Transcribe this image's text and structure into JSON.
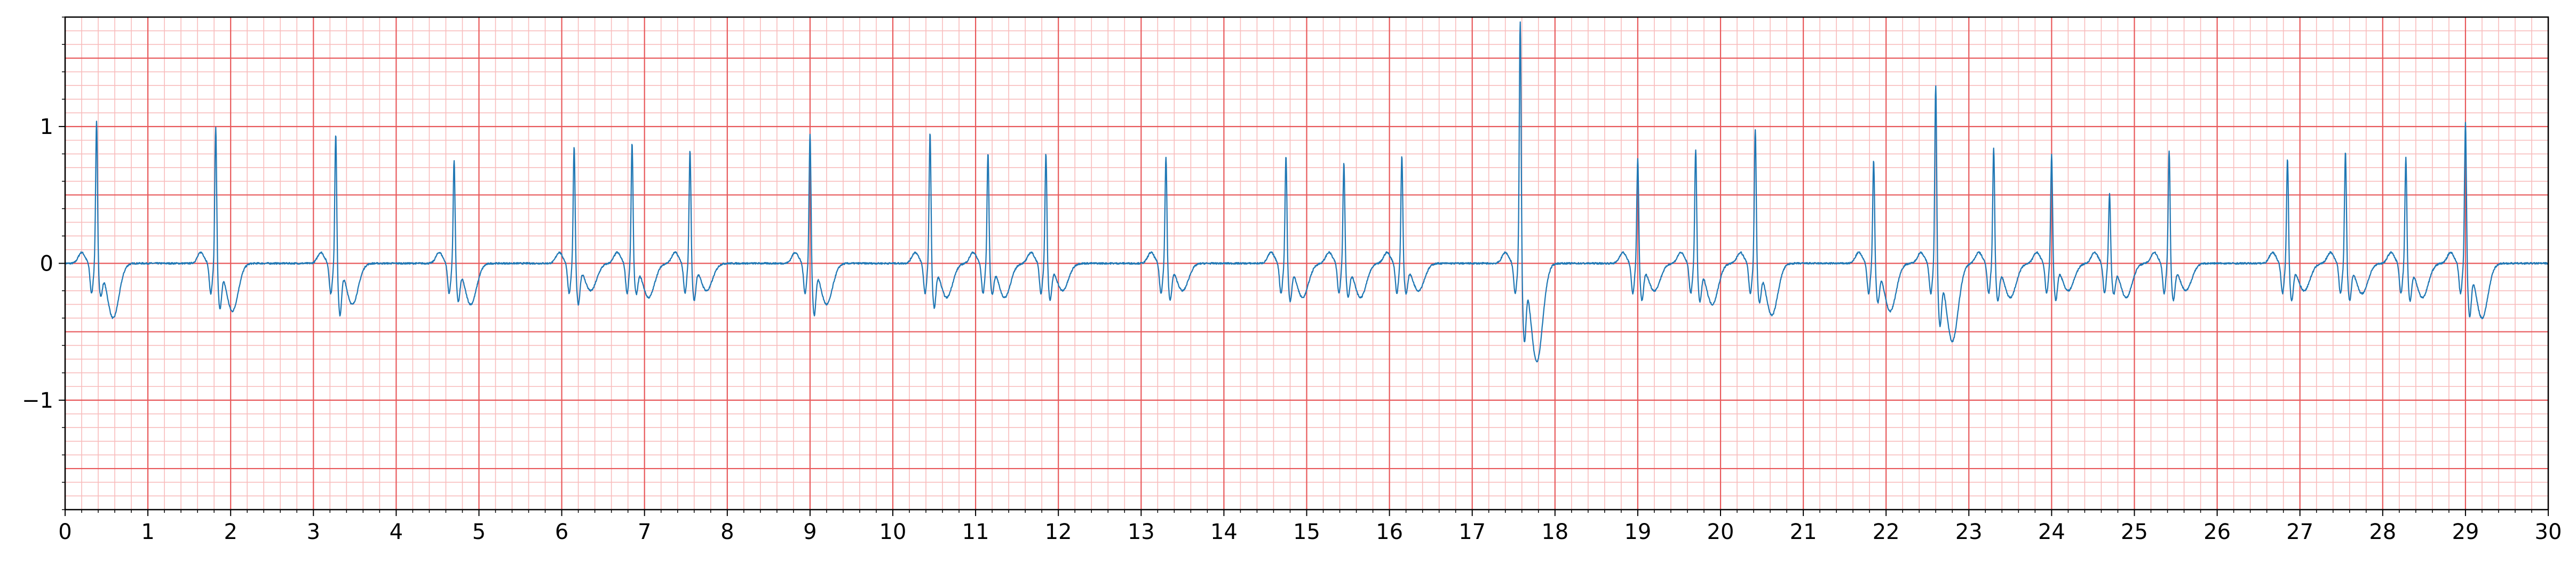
{
  "chart_data": {
    "type": "line",
    "title": "",
    "xlabel": "",
    "ylabel": "",
    "xlim": [
      0,
      30
    ],
    "ylim": [
      -1.8,
      1.8
    ],
    "x_ticks": [
      0,
      1,
      2,
      3,
      4,
      5,
      6,
      7,
      8,
      9,
      10,
      11,
      12,
      13,
      14,
      15,
      16,
      17,
      18,
      19,
      20,
      21,
      22,
      23,
      24,
      25,
      26,
      27,
      28,
      29,
      30
    ],
    "x_tick_labels": [
      "0",
      "1",
      "2",
      "3",
      "4",
      "5",
      "6",
      "7",
      "8",
      "9",
      "10",
      "11",
      "12",
      "13",
      "14",
      "15",
      "16",
      "17",
      "18",
      "19",
      "20",
      "21",
      "22",
      "23",
      "24",
      "25",
      "26",
      "27",
      "28",
      "29",
      "30"
    ],
    "y_ticks": [
      -1,
      0,
      1
    ],
    "y_tick_labels": [
      "−1",
      "0",
      "1"
    ],
    "grid": {
      "major_x_step": 1,
      "minor_x_step": 0.2,
      "major_y_step": 0.5,
      "minor_y_step": 0.1,
      "major_color": "#e8595b",
      "minor_color": "#f8bcbc"
    },
    "series": [
      {
        "color": "#1f77b4",
        "beats": [
          {
            "t": 0.38,
            "r": 1.05,
            "s": -0.2,
            "tw": 0.0,
            "post": -0.4
          },
          {
            "t": 1.82,
            "r": 1.01,
            "s": -0.3,
            "tw": 0.0,
            "post": -0.35
          },
          {
            "t": 3.27,
            "r": 0.97,
            "s": -0.35,
            "tw": 0.0,
            "post": -0.3
          },
          {
            "t": 4.7,
            "r": 0.77,
            "s": -0.25,
            "tw": 0.0,
            "post": -0.3
          },
          {
            "t": 6.15,
            "r": 0.87,
            "s": -0.28,
            "tw": 0.0,
            "post": -0.2
          },
          {
            "t": 6.85,
            "r": 0.89,
            "s": -0.2,
            "tw": 0.0,
            "post": -0.25
          },
          {
            "t": 7.55,
            "r": 0.84,
            "s": -0.25,
            "tw": 0.0,
            "post": -0.2
          },
          {
            "t": 9.0,
            "r": 0.97,
            "s": -0.35,
            "tw": 0.0,
            "post": -0.3
          },
          {
            "t": 10.45,
            "r": 0.97,
            "s": -0.3,
            "tw": 0.0,
            "post": -0.25
          },
          {
            "t": 11.15,
            "r": 0.82,
            "s": -0.2,
            "tw": 0.0,
            "post": -0.25
          },
          {
            "t": 11.85,
            "r": 0.82,
            "s": -0.25,
            "tw": 0.0,
            "post": -0.2
          },
          {
            "t": 13.3,
            "r": 0.79,
            "s": -0.25,
            "tw": 0.0,
            "post": -0.2
          },
          {
            "t": 14.75,
            "r": 0.8,
            "s": -0.25,
            "tw": 0.0,
            "post": -0.25
          },
          {
            "t": 15.45,
            "r": 0.75,
            "s": -0.22,
            "tw": 0.0,
            "post": -0.25
          },
          {
            "t": 16.15,
            "r": 0.8,
            "s": -0.2,
            "tw": 0.0,
            "post": -0.2
          },
          {
            "t": 17.58,
            "r": 1.8,
            "s": -0.5,
            "tw": 0.0,
            "post": -0.72
          },
          {
            "t": 19.0,
            "r": 0.78,
            "s": -0.25,
            "tw": 0.0,
            "post": -0.2
          },
          {
            "t": 19.7,
            "r": 0.85,
            "s": -0.25,
            "tw": 0.0,
            "post": -0.3
          },
          {
            "t": 20.42,
            "r": 1.0,
            "s": -0.25,
            "tw": 0.0,
            "post": -0.38
          },
          {
            "t": 21.85,
            "r": 0.77,
            "s": -0.25,
            "tw": 0.0,
            "post": -0.35
          },
          {
            "t": 22.6,
            "r": 1.33,
            "s": -0.4,
            "tw": 0.0,
            "post": -0.57
          },
          {
            "t": 23.3,
            "r": 0.86,
            "s": -0.25,
            "tw": 0.0,
            "post": -0.25
          },
          {
            "t": 24.0,
            "r": 0.81,
            "s": -0.25,
            "tw": 0.0,
            "post": -0.2
          },
          {
            "t": 24.7,
            "r": 0.52,
            "s": -0.2,
            "tw": 0.0,
            "post": -0.25
          },
          {
            "t": 25.42,
            "r": 0.84,
            "s": -0.25,
            "tw": 0.0,
            "post": -0.2
          },
          {
            "t": 26.85,
            "r": 0.78,
            "s": -0.25,
            "tw": 0.0,
            "post": -0.2
          },
          {
            "t": 27.55,
            "r": 0.83,
            "s": -0.25,
            "tw": 0.0,
            "post": -0.22
          },
          {
            "t": 28.28,
            "r": 0.79,
            "s": -0.25,
            "tw": 0.0,
            "post": -0.25
          },
          {
            "t": 29.0,
            "r": 1.05,
            "s": -0.35,
            "tw": 0.0,
            "post": -0.4
          }
        ]
      }
    ]
  }
}
